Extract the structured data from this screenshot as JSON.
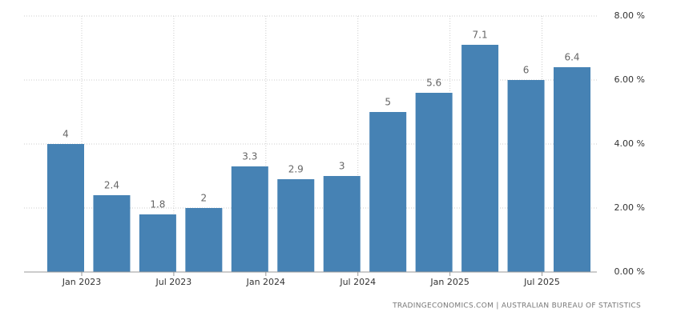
{
  "chart_data": {
    "type": "bar",
    "categories": [
      "Jan 2023",
      null,
      "Jul 2023",
      null,
      "Jan 2024",
      null,
      "Jul 2024",
      null,
      "Jan 2025",
      null,
      "Jul 2025",
      null
    ],
    "values": [
      4,
      2.4,
      1.8,
      2,
      3.3,
      2.9,
      3,
      5,
      5.6,
      7.1,
      6,
      6.4
    ],
    "color": "#4682b4",
    "ylim": [
      0,
      8
    ],
    "yticks": [
      {
        "value": 0,
        "label": "0.00 %"
      },
      {
        "value": 2,
        "label": "2.00 %"
      },
      {
        "value": 4,
        "label": "4.00 %"
      },
      {
        "value": 6,
        "label": "6.00 %"
      },
      {
        "value": 8,
        "label": "8.00 %"
      }
    ],
    "grid": true,
    "source": "TRADINGECONOMICS.COM | AUSTRALIAN BUREAU OF STATISTICS"
  }
}
